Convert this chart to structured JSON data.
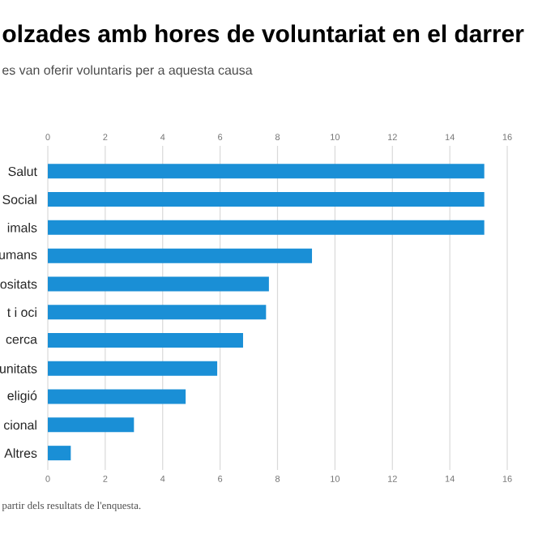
{
  "chart_data": {
    "type": "bar",
    "orientation": "horizontal",
    "title": "olzades amb hores de voluntariat en el darrer",
    "subtitle": "es van oferir voluntaris per a aquesta causa",
    "annotations": [
      "partir dels resultats de l'enquesta."
    ],
    "categories": [
      "Salut",
      "Social",
      "imals",
      "umans",
      "ositats",
      "t i oci",
      "cerca",
      "unitats",
      "eligió",
      "cional",
      "Altres"
    ],
    "values": [
      15.2,
      15.2,
      15.2,
      9.2,
      7.7,
      7.6,
      6.8,
      5.9,
      4.8,
      3.0,
      0.8
    ],
    "color": "#1a8fd6",
    "xlim": [
      0,
      16
    ],
    "xticks": [
      0,
      2,
      4,
      6,
      8,
      10,
      12,
      14,
      16
    ],
    "x2lim": [
      0,
      16
    ],
    "x2ticks": [
      0,
      2,
      4,
      6,
      8,
      10,
      12,
      14,
      16
    ],
    "grid": "x"
  }
}
